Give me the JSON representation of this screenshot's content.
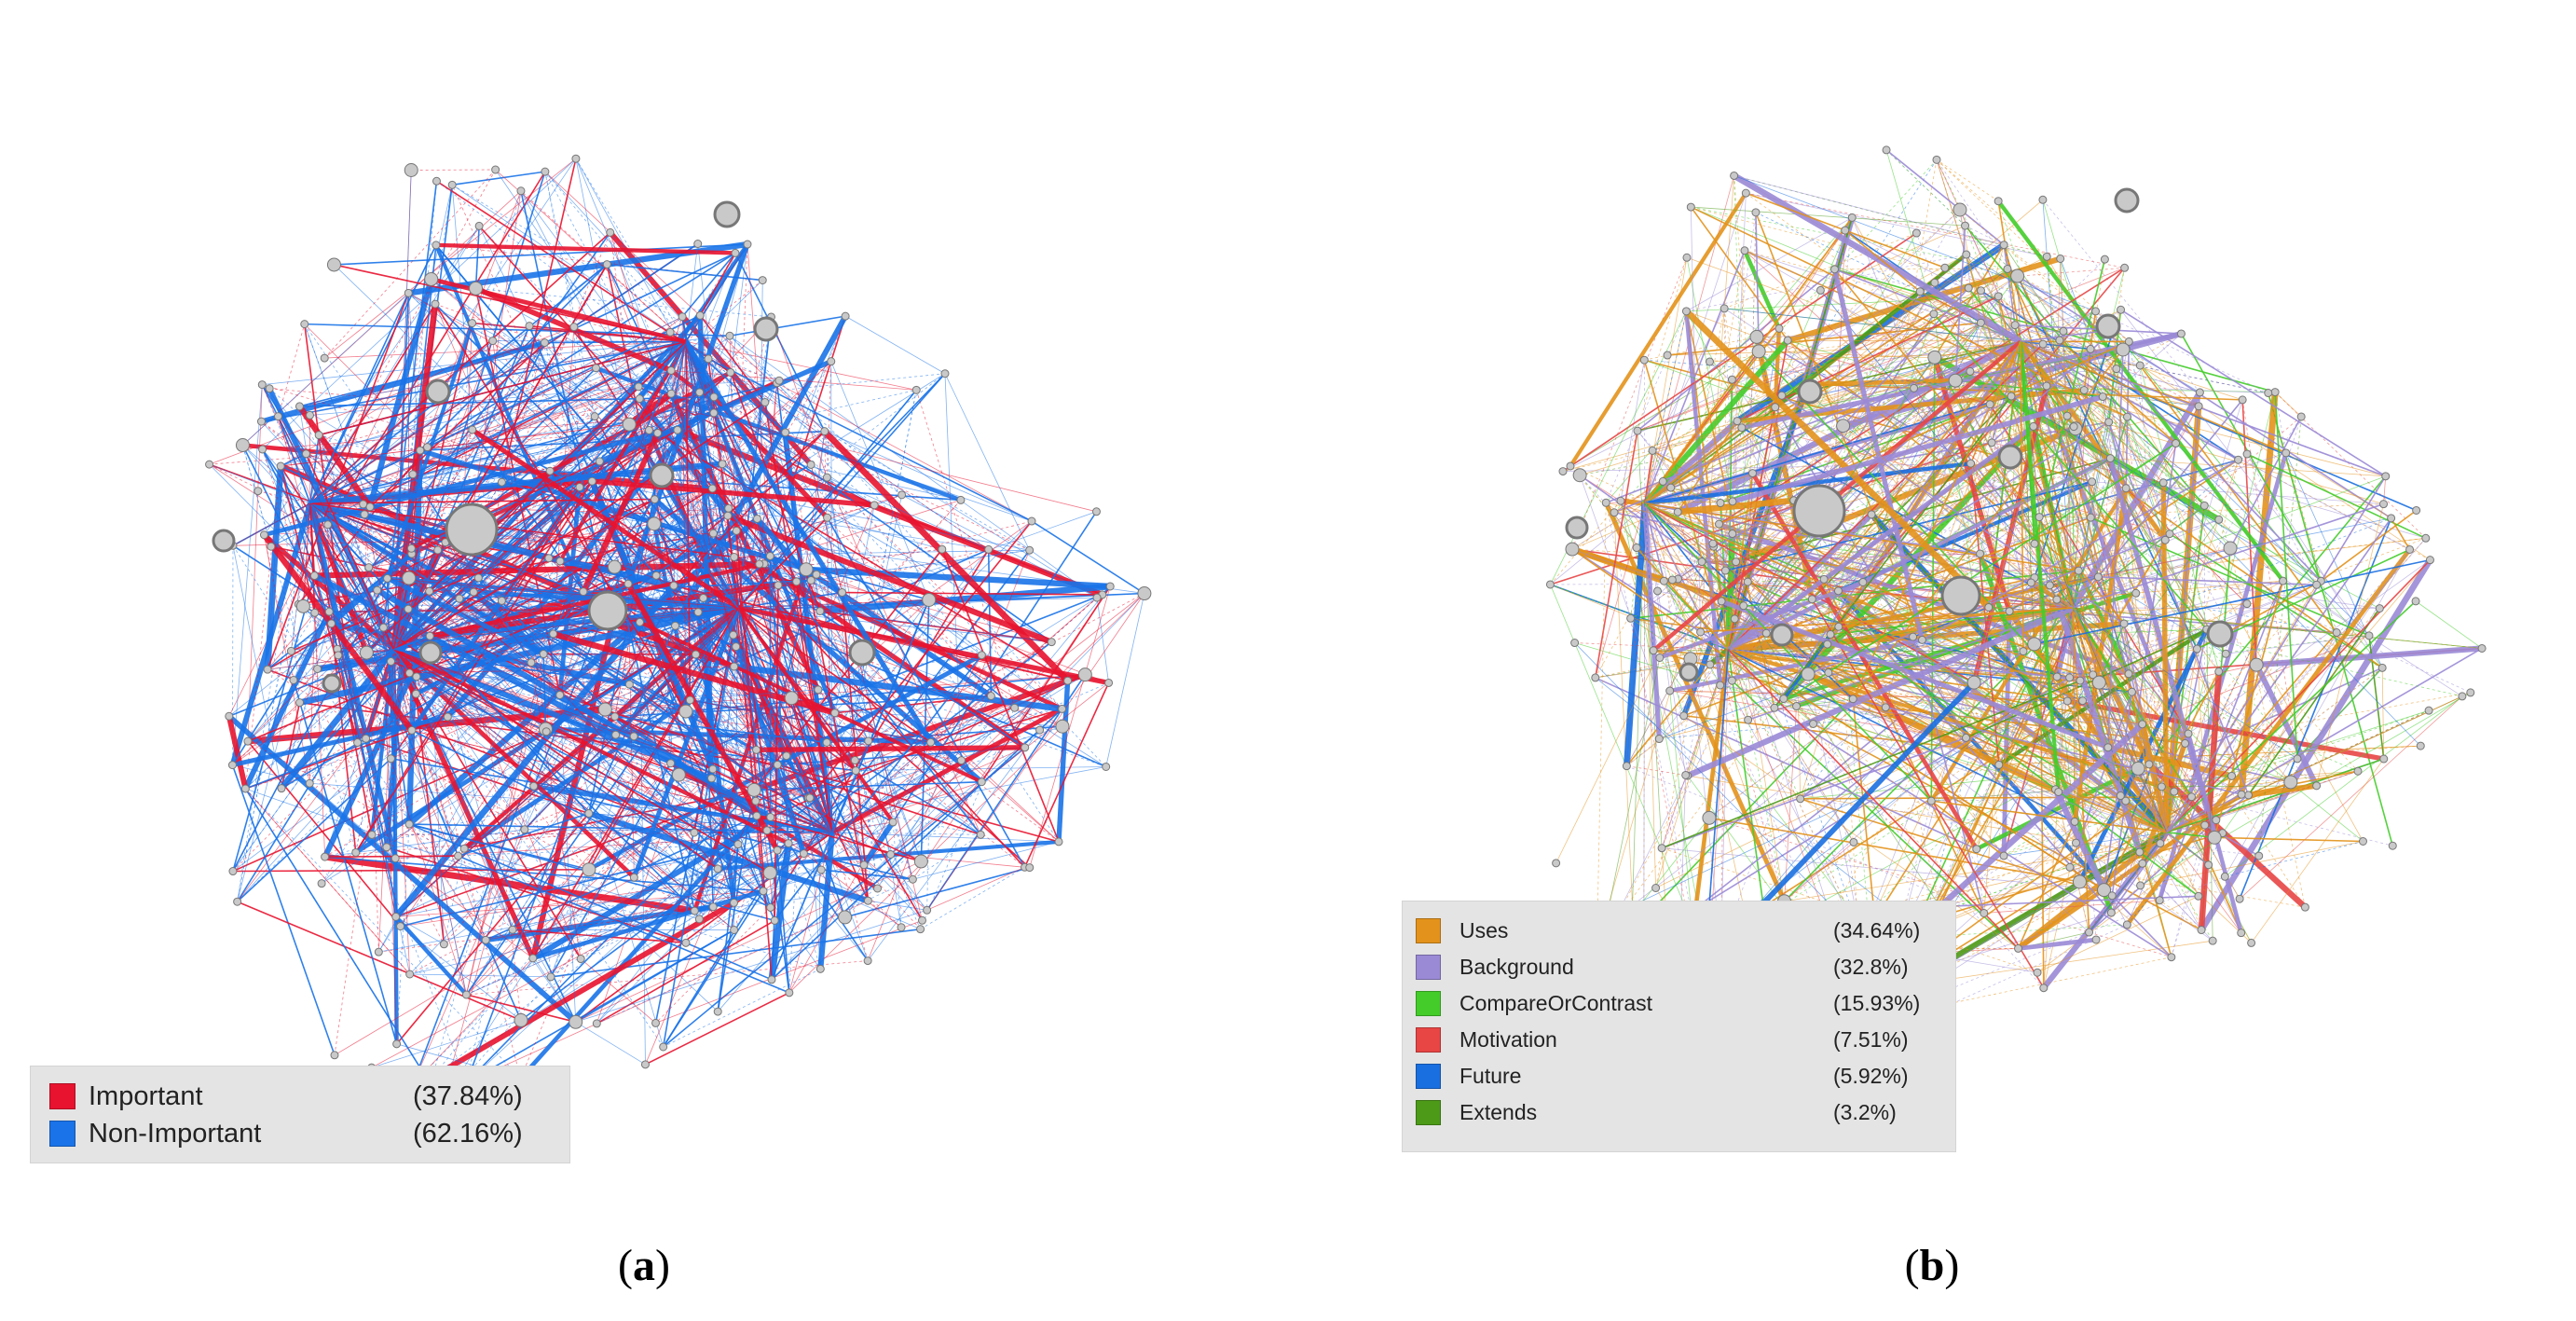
{
  "panels": [
    {
      "id": "a",
      "caption_letter": "a",
      "legend": [
        {
          "label": "Important",
          "percent": "(37.84%)",
          "color": "#e8132f"
        },
        {
          "label": "Non-Important",
          "percent": "(62.16%)",
          "color": "#1a73e8"
        }
      ]
    },
    {
      "id": "b",
      "caption_letter": "b",
      "legend": [
        {
          "label": "Uses",
          "percent": "(34.64%)",
          "color": "#e3921b"
        },
        {
          "label": "Background",
          "percent": "(32.8%)",
          "color": "#9a8ad6"
        },
        {
          "label": "CompareOrContrast",
          "percent": "(15.93%)",
          "color": "#44cc2a"
        },
        {
          "label": "Motivation",
          "percent": "(7.51%)",
          "color": "#e84545"
        },
        {
          "label": "Future",
          "percent": "(5.92%)",
          "color": "#1a6fe0"
        },
        {
          "label": "Extends",
          "percent": "(3.2%)",
          "color": "#4c9a18"
        }
      ]
    }
  ],
  "node_color": "#c9c9c9",
  "node_stroke": "#777777"
}
